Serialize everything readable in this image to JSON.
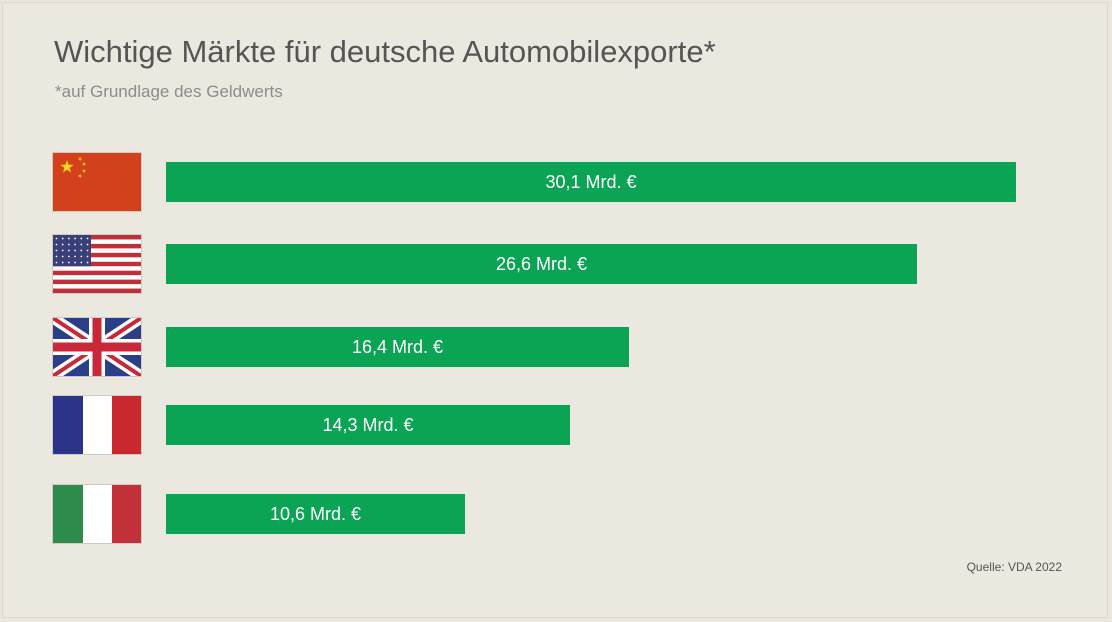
{
  "title": "Wichtige Märkte für deutsche Automobilexporte*",
  "subtitle": "*auf Grundlage des Geldwerts",
  "source": "Quelle: VDA 2022",
  "colors": {
    "bar": "#0aa454",
    "background": "#ebe8df"
  },
  "chart_data": {
    "type": "bar",
    "orientation": "horizontal",
    "categories": [
      "China",
      "USA",
      "Großbritannien",
      "Frankreich",
      "Italien"
    ],
    "category_icons": [
      "flag-china-icon",
      "flag-usa-icon",
      "flag-uk-icon",
      "flag-france-icon",
      "flag-italy-icon"
    ],
    "values": [
      30.1,
      26.6,
      16.4,
      14.3,
      10.6
    ],
    "labels": [
      "30,1 Mrd. €",
      "26,6 Mrd. €",
      "16,4 Mrd. €",
      "14,3 Mrd. €",
      "10,6 Mrd. €"
    ],
    "unit": "Mrd. €",
    "xlim": [
      0,
      30.1
    ],
    "grid": false,
    "legend": "none"
  }
}
